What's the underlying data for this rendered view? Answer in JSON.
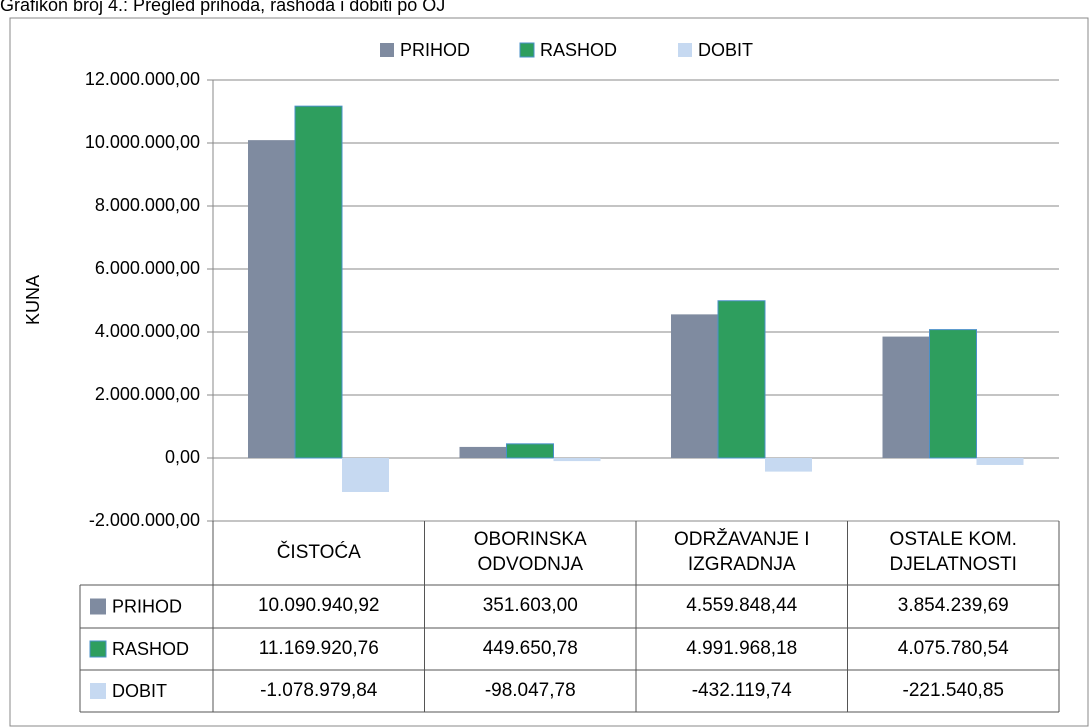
{
  "chart_data": {
    "type": "bar",
    "title": "Grafikon broj 4.: Pregled prihoda, rashoda i dobiti po OJ",
    "ylabel": "KUNA",
    "categories": [
      "ČISTOĆA",
      "OBORINSKA ODVODNJA",
      "ODRŽAVANJE I IZGRADNJA",
      "OSTALE KOM. DJELATNOSTI"
    ],
    "series": [
      {
        "name": "PRIHOD",
        "color": "#7f8ba0",
        "values": [
          10090940.92,
          351603.0,
          4559848.44,
          3854239.69
        ],
        "value_labels": [
          "10.090.940,92",
          "351.603,00",
          "4.559.848,44",
          "3.854.239,69"
        ]
      },
      {
        "name": "RASHOD",
        "color": "#2e9e5e",
        "values": [
          11169920.76,
          449650.78,
          4991968.18,
          4075780.54
        ],
        "value_labels": [
          "11.169.920,76",
          "449.650,78",
          "4.991.968,18",
          "4.075.780,54"
        ]
      },
      {
        "name": "DOBIT",
        "color": "#c6d9f1",
        "values": [
          -1078979.84,
          -98047.78,
          -432119.74,
          -221540.85
        ],
        "value_labels": [
          "-1.078.979,84",
          "-98.047,78",
          "-432.119,74",
          "-221.540,85"
        ]
      }
    ],
    "ylim": [
      -2000000,
      12000000
    ],
    "yticks": [
      {
        "value": -2000000,
        "label": "-2.000.000,00"
      },
      {
        "value": 0,
        "label": "0,00"
      },
      {
        "value": 2000000,
        "label": "2.000.000,00"
      },
      {
        "value": 4000000,
        "label": "4.000.000,00"
      },
      {
        "value": 6000000,
        "label": "6.000.000,00"
      },
      {
        "value": 8000000,
        "label": "8.000.000,00"
      },
      {
        "value": 10000000,
        "label": "10.000.000,00"
      },
      {
        "value": 12000000,
        "label": "12.000.000,00"
      }
    ],
    "grid": true,
    "legend": "top"
  }
}
